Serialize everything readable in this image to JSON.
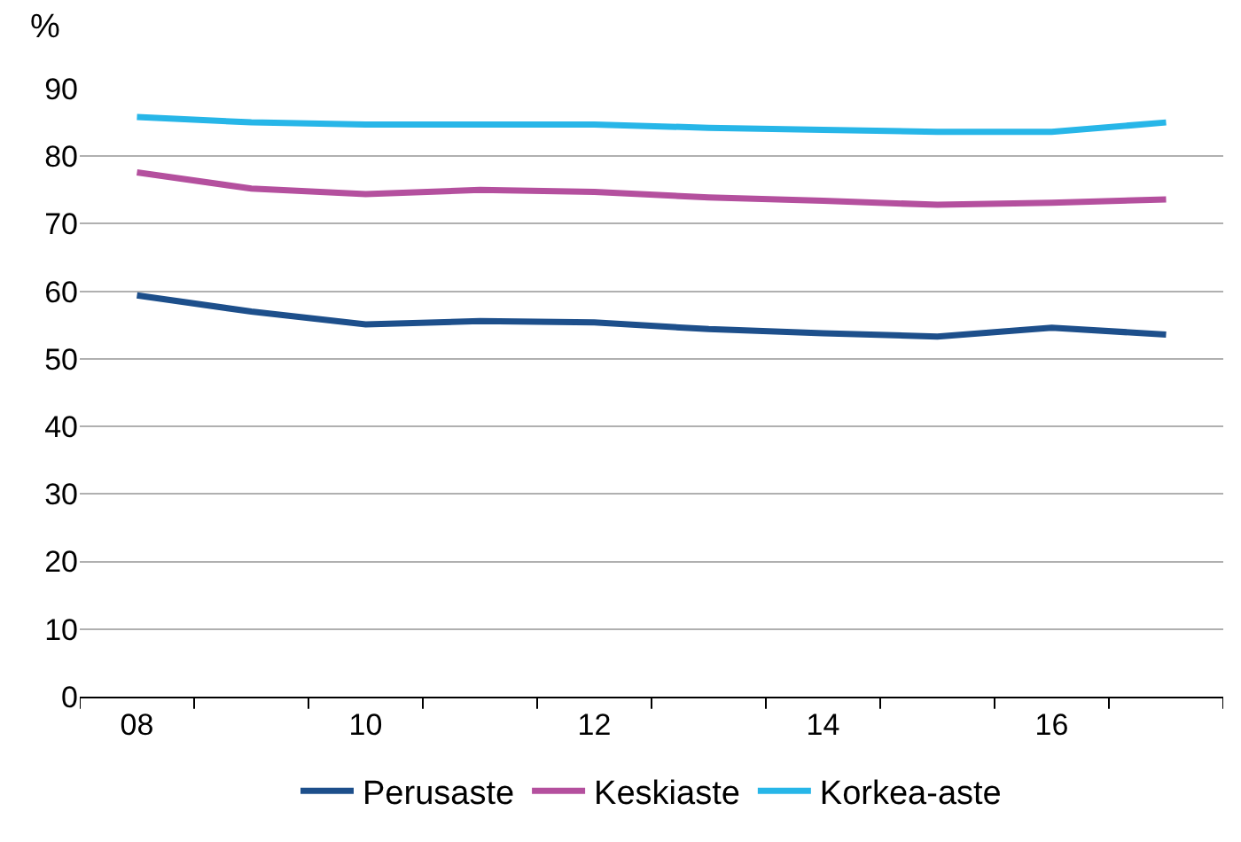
{
  "chart_data": {
    "type": "line",
    "ylabel": "%",
    "categories": [
      "08",
      null,
      "10",
      null,
      "12",
      null,
      "14",
      null,
      "16",
      null
    ],
    "series": [
      {
        "name": "Perusaste",
        "color": "#1d4f8b",
        "values": [
          59.4,
          57.0,
          55.1,
          55.6,
          55.4,
          54.4,
          53.8,
          53.3,
          54.6,
          53.6
        ]
      },
      {
        "name": "Keskiaste",
        "color": "#b4509e",
        "values": [
          77.6,
          75.2,
          74.4,
          75.0,
          74.7,
          73.9,
          73.4,
          72.8,
          73.1,
          73.6
        ]
      },
      {
        "name": "Korkea-aste",
        "color": "#27b6e8",
        "values": [
          85.8,
          85.0,
          84.7,
          84.7,
          84.7,
          84.2,
          83.9,
          83.6,
          83.6,
          85.0
        ]
      }
    ],
    "ylim": [
      0,
      90
    ],
    "yticks": [
      0,
      10,
      20,
      30,
      40,
      50,
      60,
      70,
      80,
      90
    ],
    "grid": "y",
    "legend": "bottom",
    "marker": "none",
    "line_style": "solid"
  }
}
